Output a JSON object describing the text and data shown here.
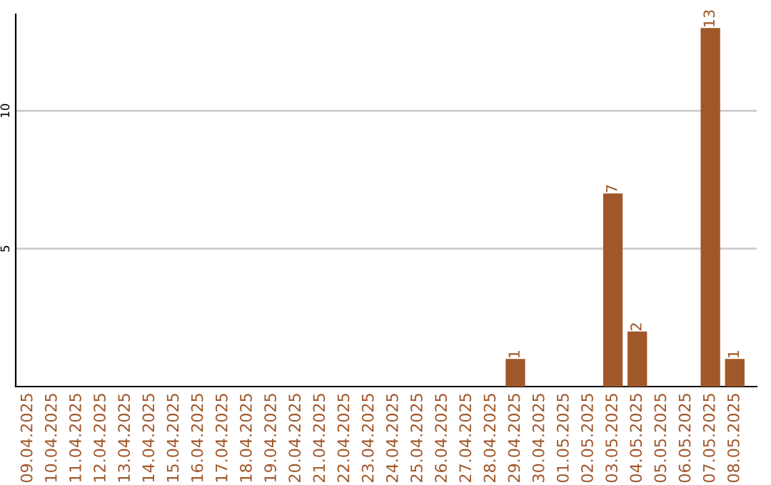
{
  "chart_data": {
    "type": "bar",
    "categories": [
      "09.04.2025",
      "10.04.2025",
      "11.04.2025",
      "12.04.2025",
      "13.04.2025",
      "14.04.2025",
      "15.04.2025",
      "16.04.2025",
      "17.04.2025",
      "18.04.2025",
      "19.04.2025",
      "20.04.2025",
      "21.04.2025",
      "22.04.2025",
      "23.04.2025",
      "24.04.2025",
      "25.04.2025",
      "26.04.2025",
      "27.04.2025",
      "28.04.2025",
      "29.04.2025",
      "30.04.2025",
      "01.05.2025",
      "02.05.2025",
      "03.05.2025",
      "04.05.2025",
      "05.05.2025",
      "06.05.2025",
      "07.05.2025",
      "08.05.2025"
    ],
    "values": [
      0,
      0,
      0,
      0,
      0,
      0,
      0,
      0,
      0,
      0,
      0,
      0,
      0,
      0,
      0,
      0,
      0,
      0,
      0,
      0,
      1,
      0,
      0,
      0,
      7,
      2,
      0,
      0,
      13,
      1
    ],
    "value_labels": [
      null,
      null,
      null,
      null,
      null,
      null,
      null,
      null,
      null,
      null,
      null,
      null,
      null,
      null,
      null,
      null,
      null,
      null,
      null,
      null,
      "1",
      null,
      null,
      null,
      "7",
      "2",
      null,
      null,
      "13",
      "1"
    ],
    "color": "#a0572a",
    "ylim": [
      0,
      13.5
    ],
    "yticks": [
      5,
      10
    ],
    "grid": "y"
  }
}
